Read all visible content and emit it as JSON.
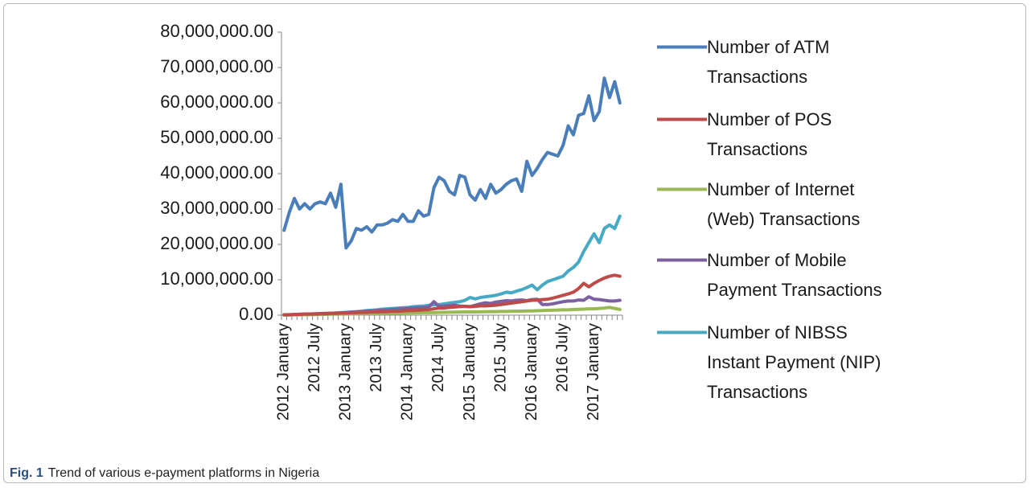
{
  "chart_data": {
    "type": "line",
    "categories": [
      "2012 January",
      null,
      null,
      null,
      null,
      null,
      "2012 July",
      null,
      null,
      null,
      null,
      null,
      "2013 January",
      null,
      null,
      null,
      null,
      null,
      "2013 July",
      null,
      null,
      null,
      null,
      null,
      "2014 January",
      null,
      null,
      null,
      null,
      null,
      "2014 July",
      null,
      null,
      null,
      null,
      null,
      "2015 January",
      null,
      null,
      null,
      null,
      null,
      "2015 July",
      null,
      null,
      null,
      null,
      null,
      "2016 January",
      null,
      null,
      null,
      null,
      null,
      "2016 July",
      null,
      null,
      null,
      null,
      null,
      "2017 January",
      null,
      null,
      null,
      null,
      null
    ],
    "series": [
      {
        "name": "Number of ATM Transactions",
        "color": "#4a7ebb",
        "values": [
          24000000,
          29000000,
          33000000,
          30000000,
          31500000,
          30000000,
          31500000,
          32000000,
          31500000,
          34500000,
          30500000,
          37000000,
          19000000,
          21000000,
          24500000,
          24000000,
          25000000,
          23500000,
          25500000,
          25500000,
          26000000,
          27000000,
          26500000,
          28500000,
          26500000,
          26500000,
          29500000,
          28000000,
          28500000,
          36000000,
          39000000,
          38000000,
          35000000,
          34000000,
          39500000,
          39000000,
          34000000,
          32500000,
          35500000,
          33000000,
          37000000,
          34500000,
          35500000,
          37000000,
          38000000,
          38500000,
          35000000,
          43500000,
          39500000,
          41500000,
          44000000,
          46000000,
          45500000,
          45000000,
          48000000,
          53500000,
          51000000,
          56500000,
          57000000,
          62000000,
          55000000,
          57500000,
          67000000,
          61500000,
          66000000,
          60000000
        ]
      },
      {
        "name": "Number of POS Transactions",
        "color": "#be4b48",
        "values": [
          100000,
          100000,
          200000,
          200000,
          300000,
          300000,
          300000,
          400000,
          400000,
          500000,
          500000,
          600000,
          600000,
          700000,
          700000,
          800000,
          800000,
          900000,
          900000,
          1000000,
          1000000,
          1100000,
          1100000,
          1200000,
          1300000,
          1300000,
          1400000,
          1500000,
          1600000,
          1800000,
          2000000,
          2000000,
          2200000,
          2300000,
          2400000,
          2500000,
          2400000,
          2500000,
          2600000,
          2600000,
          2700000,
          2800000,
          3000000,
          3200000,
          3400000,
          3600000,
          3800000,
          4000000,
          4200000,
          4300000,
          4400000,
          4500000,
          4800000,
          5200000,
          5600000,
          6000000,
          6500000,
          7500000,
          9000000,
          8000000,
          9000000,
          9800000,
          10500000,
          11000000,
          11300000,
          11000000
        ]
      },
      {
        "name": "Number of Internet (Web) Transactions",
        "color": "#98b954",
        "values": [
          50000,
          60000,
          80000,
          100000,
          120000,
          150000,
          180000,
          200000,
          220000,
          250000,
          280000,
          300000,
          320000,
          350000,
          380000,
          400000,
          420000,
          450000,
          480000,
          500000,
          520000,
          550000,
          580000,
          600000,
          620000,
          650000,
          680000,
          700000,
          720000,
          750000,
          780000,
          800000,
          820000,
          850000,
          880000,
          900000,
          900000,
          920000,
          950000,
          980000,
          1000000,
          1000000,
          1050000,
          1050000,
          1100000,
          1100000,
          1150000,
          1200000,
          1200000,
          1250000,
          1300000,
          1350000,
          1400000,
          1450000,
          1500000,
          1500000,
          1600000,
          1650000,
          1700000,
          1800000,
          1800000,
          1900000,
          2000000,
          2200000,
          1900000,
          1600000
        ]
      },
      {
        "name": "Number of Mobile Payment Transactions",
        "color": "#7d60a0",
        "values": [
          100000,
          150000,
          200000,
          250000,
          300000,
          350000,
          400000,
          450000,
          500000,
          550000,
          600000,
          650000,
          700000,
          800000,
          900000,
          1000000,
          1100000,
          1200000,
          1300000,
          1400000,
          1500000,
          1600000,
          1700000,
          1800000,
          1900000,
          2000000,
          2100000,
          2200000,
          2300000,
          3800000,
          2500000,
          2600000,
          2700000,
          2800000,
          2600000,
          2500000,
          2400000,
          2800000,
          3200000,
          3500000,
          3300000,
          3700000,
          3900000,
          4100000,
          4000000,
          4200000,
          4300000,
          4100000,
          4400000,
          4500000,
          3000000,
          3000000,
          3200000,
          3500000,
          3800000,
          4000000,
          4000000,
          4300000,
          4200000,
          5200000,
          4500000,
          4400000,
          4200000,
          4000000,
          4000000,
          4200000
        ]
      },
      {
        "name": "Number of NIBSS Instant Payment (NIP) Transactions",
        "color": "#46aac5",
        "values": [
          50000,
          80000,
          100000,
          150000,
          200000,
          250000,
          300000,
          350000,
          400000,
          500000,
          600000,
          700000,
          800000,
          900000,
          1000000,
          1100000,
          1300000,
          1400000,
          1500000,
          1700000,
          1800000,
          1900000,
          2000000,
          2100000,
          2200000,
          2400000,
          2500000,
          2600000,
          2800000,
          2900000,
          3000000,
          3200000,
          3400000,
          3600000,
          3800000,
          4200000,
          5000000,
          4600000,
          5000000,
          5200000,
          5400000,
          5600000,
          6000000,
          6500000,
          6300000,
          6800000,
          7200000,
          7800000,
          8500000,
          7200000,
          8500000,
          9500000,
          10000000,
          10500000,
          11000000,
          12500000,
          13500000,
          15000000,
          18000000,
          20500000,
          23000000,
          20500000,
          24500000,
          25500000,
          24500000,
          28000000
        ]
      }
    ],
    "ylim": [
      0,
      80000000
    ],
    "yticks": [
      {
        "value": 0,
        "label": "0.00"
      },
      {
        "value": 10000000,
        "label": "10,000,000.00"
      },
      {
        "value": 20000000,
        "label": "20,000,000.00"
      },
      {
        "value": 30000000,
        "label": "30,000,000.00"
      },
      {
        "value": 40000000,
        "label": "40,000,000.00"
      },
      {
        "value": 50000000,
        "label": "50,000,000.00"
      },
      {
        "value": 60000000,
        "label": "60,000,000.00"
      },
      {
        "value": 70000000,
        "label": "70,000,000.00"
      },
      {
        "value": 80000000,
        "label": "80,000,000.00"
      }
    ],
    "grid": false,
    "legend": "right"
  },
  "caption": {
    "label": "Fig. 1",
    "text": "Trend of various e-payment platforms in Nigeria"
  }
}
